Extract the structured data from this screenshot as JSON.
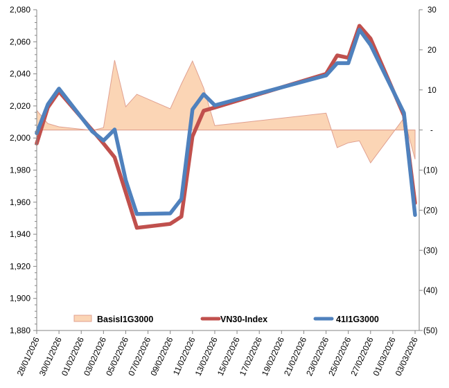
{
  "chart_data": {
    "type": "line",
    "title": "",
    "left_axis": {
      "min": 1880,
      "max": 2080,
      "step": 20,
      "tick_labels": [
        "1,880",
        "1,900",
        "1,920",
        "1,940",
        "1,960",
        "1,980",
        "2,000",
        "2,020",
        "2,040",
        "2,060",
        "2,080"
      ]
    },
    "right_axis": {
      "min": -50,
      "max": 30,
      "step": 10,
      "tick_labels": [
        "(50)",
        "(40)",
        "(30)",
        "(20)",
        "(10)",
        "-",
        "10",
        "20",
        "30"
      ]
    },
    "x_tick_labels": [
      "28/01/2026",
      "30/01/2026",
      "01/02/2026",
      "03/02/2026",
      "05/02/2026",
      "07/02/2026",
      "09/02/2026",
      "11/02/2026",
      "13/02/2026",
      "15/02/2026",
      "17/02/2026",
      "19/02/2026",
      "21/02/2026",
      "23/02/2026",
      "25/02/2026",
      "27/02/2026",
      "01/03/2026",
      "03/03/2026"
    ],
    "dates": [
      "28/01/2026",
      "29/01/2026",
      "30/01/2026",
      "02/02/2026",
      "03/02/2026",
      "04/02/2026",
      "05/02/2026",
      "06/02/2026",
      "09/02/2026",
      "10/02/2026",
      "11/02/2026",
      "12/02/2026",
      "13/02/2026",
      "23/02/2026",
      "24/02/2026",
      "25/02/2026",
      "26/02/2026",
      "27/02/2026",
      "02/03/2026",
      "03/03/2026"
    ],
    "series": [
      {
        "name": "BasisI1G3000",
        "type": "area",
        "axis": "right",
        "color": "#FBD5B5",
        "edge": "#E0A090",
        "values": [
          4.9,
          1.6,
          0.8,
          -0.1,
          0.6,
          17.4,
          5.8,
          8.9,
          5.3,
          11.5,
          17.2,
          10.5,
          1.1,
          4.2,
          -4.4,
          -3.2,
          -2.7,
          -8.2,
          3.0,
          -7.3
        ]
      },
      {
        "name": "VN30-Index",
        "type": "line",
        "axis": "left",
        "color": "#C0504D",
        "values": [
          1996.6,
          2019.1,
          2029.0,
          2004.8,
          1996.6,
          1988.0,
          1966.0,
          1944.0,
          1946.5,
          1951.0,
          2001.0,
          2017.0,
          2019.0,
          2040.0,
          2051.5,
          2050.0,
          2070.0,
          2062.0,
          2014.0,
          1959.5
        ]
      },
      {
        "name": "41I1G3000",
        "type": "line",
        "axis": "left",
        "color": "#4F81BD",
        "values": [
          2003.0,
          2021.0,
          2030.8,
          2004.0,
          1998.4,
          2005.3,
          1973.7,
          1952.6,
          1953.0,
          1962.0,
          2017.8,
          2027.3,
          2020.4,
          2039.0,
          2046.7,
          2046.7,
          2067.5,
          2058.0,
          2015.6,
          1952.0
        ]
      }
    ],
    "legend_position": "bottom-inside"
  }
}
